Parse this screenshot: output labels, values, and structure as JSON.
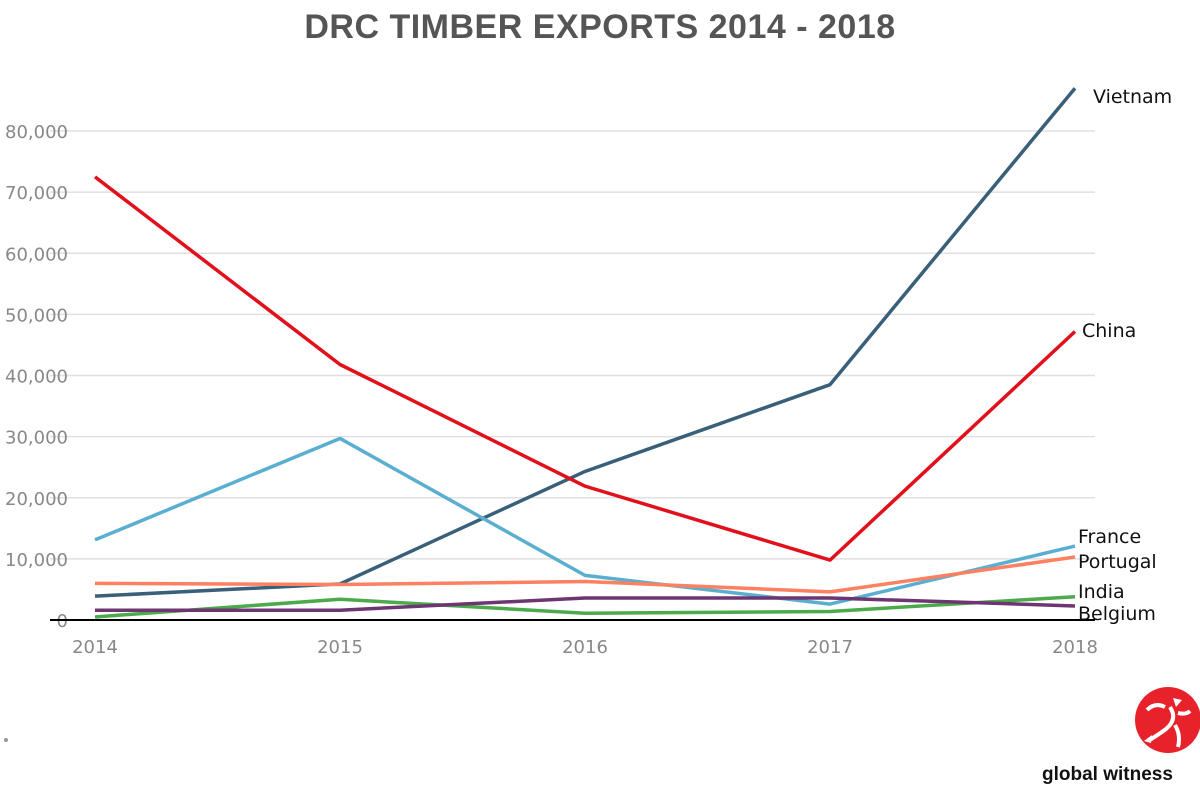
{
  "chart_data": {
    "type": "line",
    "title": "DRC TIMBER EXPORTS 2014 - 2018",
    "xlabel": "",
    "ylabel": "",
    "x": [
      "2014",
      "2015",
      "2016",
      "2017",
      "2018"
    ],
    "ylim": [
      0,
      88000
    ],
    "yticks": [
      "0",
      "10,000",
      "20,000",
      "30,000",
      "40,000",
      "50,000",
      "60,000",
      "70,000",
      "80,000"
    ],
    "ytick_values": [
      0,
      10000,
      20000,
      30000,
      40000,
      50000,
      60000,
      70000,
      80000
    ],
    "grid": true,
    "legend": "end-of-line labels",
    "series": [
      {
        "name": "Vietnam",
        "color": "#3a6079",
        "values": [
          3900,
          5900,
          24300,
          38500,
          87000
        ]
      },
      {
        "name": "China",
        "color": "#e1101b",
        "values": [
          72500,
          41800,
          21900,
          9800,
          47200
        ]
      },
      {
        "name": "France",
        "color": "#5aafd0",
        "values": [
          13100,
          29700,
          7300,
          2600,
          12100
        ]
      },
      {
        "name": "Portugal",
        "color": "#fb8160",
        "values": [
          6000,
          5800,
          6300,
          4600,
          10300
        ]
      },
      {
        "name": "India",
        "color": "#4caa4c",
        "values": [
          500,
          3400,
          1100,
          1400,
          3800
        ]
      },
      {
        "name": "Belgium",
        "color": "#6d3571",
        "values": [
          1600,
          1600,
          3600,
          3600,
          2300
        ]
      }
    ]
  },
  "branding": {
    "logo_text": "global witness",
    "logo_color": "#e8222a"
  }
}
